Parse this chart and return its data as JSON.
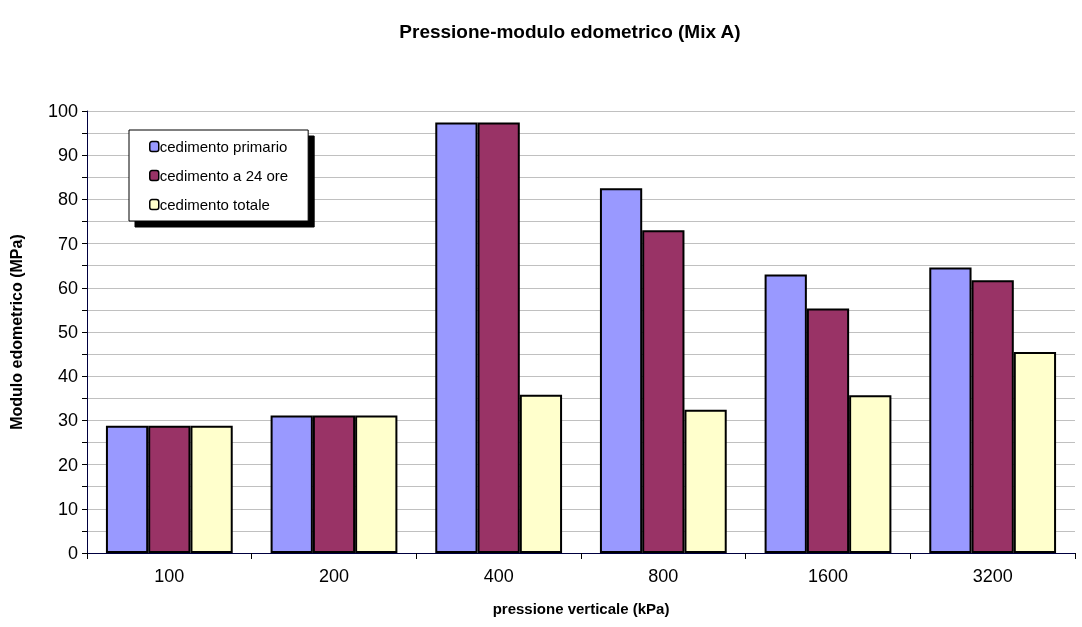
{
  "chart_data": {
    "type": "bar",
    "title": "Pressione-modulo edometrico (Mix A)",
    "xlabel": "pressione verticale (kPa)",
    "ylabel": "Modulo edometrico (MPa)",
    "categories": [
      "100",
      "200",
      "400",
      "800",
      "1600",
      "3200"
    ],
    "series": [
      {
        "name": "cedimento primario",
        "color": "#9999ff",
        "values": [
          28.8,
          31.1,
          97.4,
          82.5,
          63.0,
          64.6
        ]
      },
      {
        "name": "cedimento a 24 ore",
        "color": "#993366",
        "values": [
          28.8,
          31.1,
          97.4,
          73.0,
          55.3,
          61.7
        ]
      },
      {
        "name": "cedimento totale",
        "color": "#ffffcc",
        "values": [
          28.8,
          31.1,
          35.8,
          32.4,
          35.7,
          45.5
        ]
      }
    ],
    "ylim": [
      0,
      100
    ],
    "yticks": [
      0,
      10,
      20,
      30,
      40,
      50,
      60,
      70,
      80,
      90,
      100
    ],
    "grid": "y",
    "legend": "top left"
  }
}
